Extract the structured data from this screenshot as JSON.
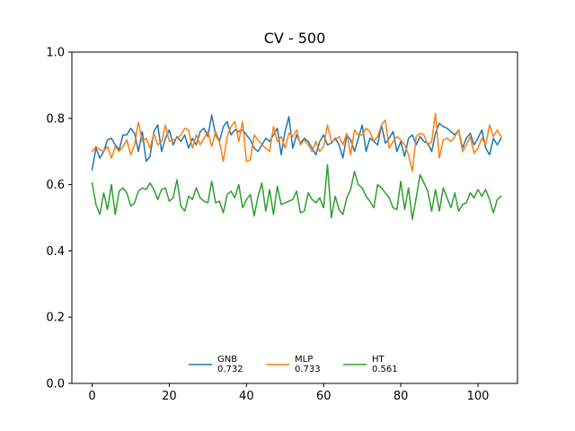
{
  "chart_data": {
    "type": "line",
    "title": "CV - 500",
    "xlabel": "",
    "ylabel": "",
    "xlim": [
      -5.25,
      110.25
    ],
    "ylim": [
      0.0,
      1.0
    ],
    "xticks": [
      0,
      20,
      40,
      60,
      80,
      100
    ],
    "yticks": [
      0.0,
      0.2,
      0.4,
      0.6,
      0.8,
      1.0
    ],
    "xtick_labels": [
      "0",
      "20",
      "40",
      "60",
      "80",
      "100"
    ],
    "ytick_labels": [
      "0.0",
      "0.2",
      "0.4",
      "0.6",
      "0.8",
      "1.0"
    ],
    "grid": false,
    "legend_position": "lower-center",
    "series": [
      {
        "name": "GNB",
        "legend_value": "0.732",
        "color": "#1f77b4",
        "values": [
          0.645,
          0.71,
          0.68,
          0.7,
          0.735,
          0.74,
          0.72,
          0.705,
          0.75,
          0.75,
          0.77,
          0.755,
          0.7,
          0.76,
          0.67,
          0.685,
          0.76,
          0.78,
          0.7,
          0.74,
          0.765,
          0.72,
          0.745,
          0.73,
          0.75,
          0.71,
          0.74,
          0.72,
          0.76,
          0.77,
          0.745,
          0.81,
          0.75,
          0.73,
          0.775,
          0.79,
          0.75,
          0.765,
          0.76,
          0.765,
          0.75,
          0.735,
          0.71,
          0.7,
          0.72,
          0.74,
          0.73,
          0.75,
          0.77,
          0.69,
          0.76,
          0.805,
          0.71,
          0.75,
          0.725,
          0.74,
          0.73,
          0.71,
          0.69,
          0.73,
          0.75,
          0.72,
          0.725,
          0.74,
          0.72,
          0.68,
          0.75,
          0.735,
          0.7,
          0.74,
          0.78,
          0.7,
          0.74,
          0.73,
          0.72,
          0.78,
          0.725,
          0.74,
          0.76,
          0.7,
          0.73,
          0.685,
          0.74,
          0.75,
          0.72,
          0.745,
          0.73,
          0.725,
          0.7,
          0.755,
          0.785,
          0.775,
          0.77,
          0.76,
          0.75,
          0.765,
          0.71,
          0.74,
          0.755,
          0.72,
          0.74,
          0.765,
          0.71,
          0.69,
          0.74,
          0.72,
          0.74
        ]
      },
      {
        "name": "MLP",
        "legend_value": "0.733",
        "color": "#ff7f0e",
        "values": [
          0.7,
          0.715,
          0.705,
          0.7,
          0.715,
          0.68,
          0.715,
          0.7,
          0.715,
          0.735,
          0.69,
          0.72,
          0.79,
          0.73,
          0.74,
          0.71,
          0.755,
          0.72,
          0.73,
          0.78,
          0.73,
          0.735,
          0.74,
          0.75,
          0.77,
          0.765,
          0.71,
          0.75,
          0.72,
          0.74,
          0.76,
          0.715,
          0.76,
          0.73,
          0.67,
          0.745,
          0.775,
          0.79,
          0.73,
          0.79,
          0.67,
          0.675,
          0.75,
          0.735,
          0.72,
          0.71,
          0.7,
          0.775,
          0.73,
          0.745,
          0.71,
          0.755,
          0.745,
          0.765,
          0.72,
          0.735,
          0.72,
          0.7,
          0.73,
          0.7,
          0.715,
          0.78,
          0.73,
          0.735,
          0.745,
          0.72,
          0.755,
          0.69,
          0.765,
          0.75,
          0.75,
          0.77,
          0.76,
          0.73,
          0.745,
          0.78,
          0.795,
          0.71,
          0.73,
          0.745,
          0.735,
          0.72,
          0.69,
          0.64,
          0.745,
          0.755,
          0.75,
          0.72,
          0.73,
          0.815,
          0.68,
          0.735,
          0.74,
          0.73,
          0.745,
          0.765,
          0.7,
          0.72,
          0.745,
          0.695,
          0.71,
          0.74,
          0.72,
          0.78,
          0.745,
          0.765,
          0.745
        ]
      },
      {
        "name": "HT",
        "legend_value": "0.561",
        "color": "#2ca02c",
        "values": [
          0.605,
          0.54,
          0.51,
          0.575,
          0.525,
          0.6,
          0.51,
          0.58,
          0.59,
          0.575,
          0.535,
          0.545,
          0.58,
          0.59,
          0.585,
          0.605,
          0.585,
          0.555,
          0.585,
          0.59,
          0.55,
          0.56,
          0.615,
          0.535,
          0.52,
          0.565,
          0.555,
          0.59,
          0.56,
          0.55,
          0.545,
          0.61,
          0.545,
          0.55,
          0.515,
          0.57,
          0.58,
          0.56,
          0.6,
          0.53,
          0.555,
          0.57,
          0.505,
          0.565,
          0.605,
          0.52,
          0.585,
          0.51,
          0.595,
          0.54,
          0.545,
          0.55,
          0.555,
          0.58,
          0.515,
          0.52,
          0.575,
          0.555,
          0.545,
          0.56,
          0.53,
          0.66,
          0.5,
          0.565,
          0.525,
          0.51,
          0.56,
          0.585,
          0.64,
          0.6,
          0.59,
          0.565,
          0.55,
          0.53,
          0.6,
          0.59,
          0.575,
          0.56,
          0.53,
          0.525,
          0.61,
          0.525,
          0.59,
          0.495,
          0.56,
          0.63,
          0.605,
          0.58,
          0.52,
          0.585,
          0.52,
          0.59,
          0.56,
          0.53,
          0.575,
          0.52,
          0.54,
          0.545,
          0.575,
          0.56,
          0.585,
          0.565,
          0.585,
          0.555,
          0.515,
          0.555,
          0.565
        ]
      }
    ]
  }
}
